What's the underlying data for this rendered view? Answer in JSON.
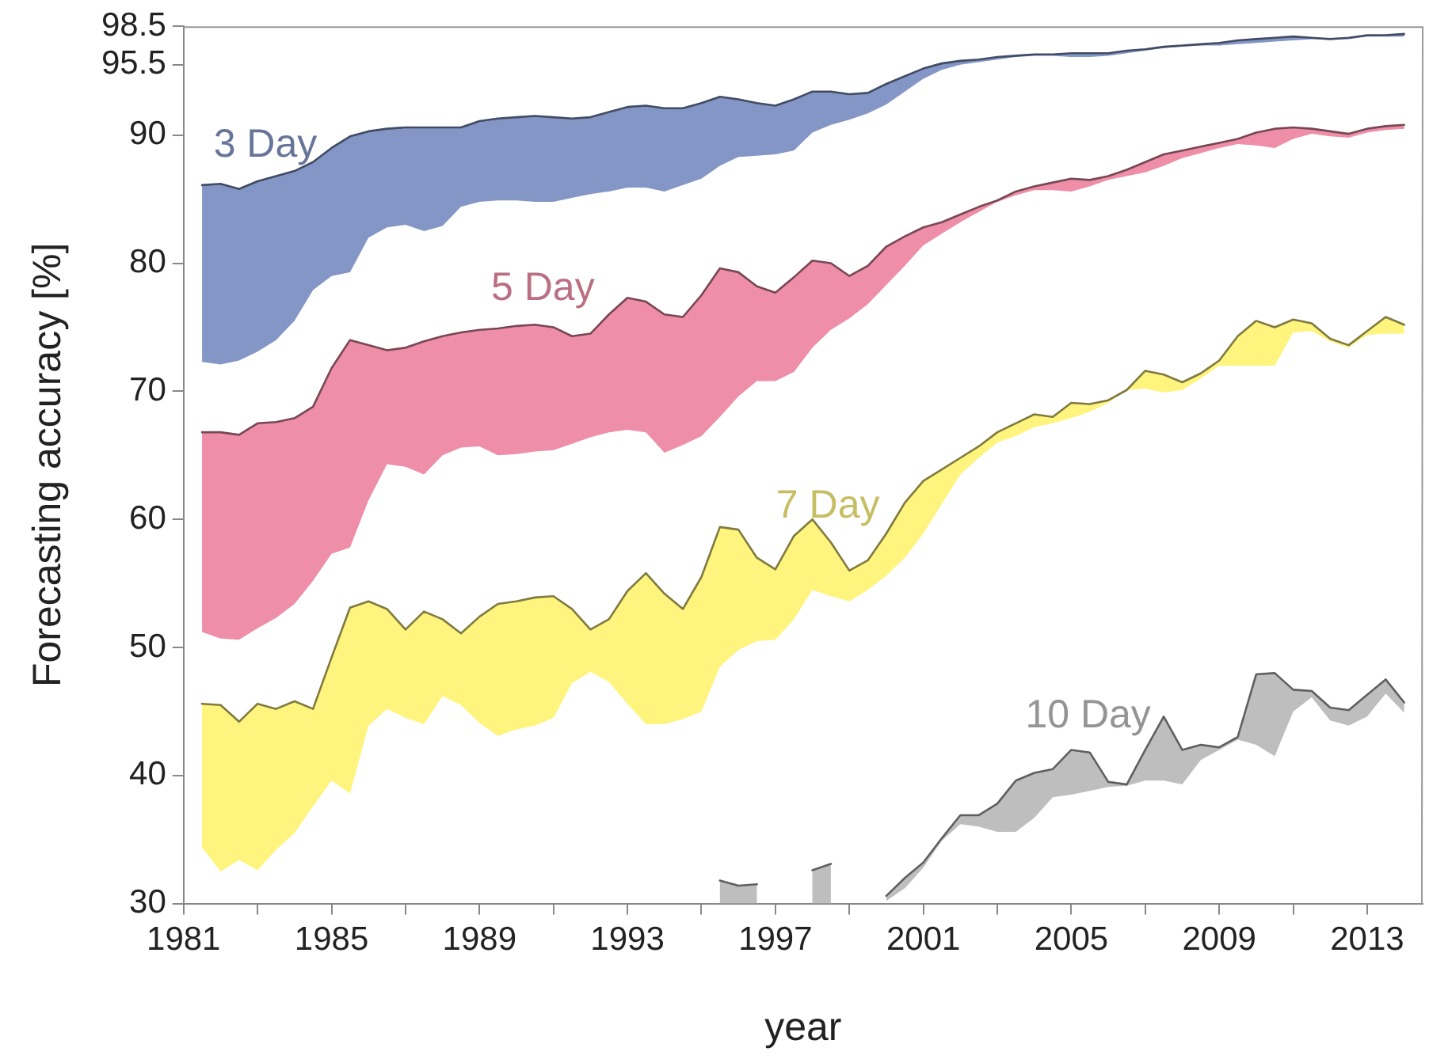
{
  "chart_data": {
    "type": "line",
    "xlabel": "year",
    "ylabel": "Forecasting accuracy [%]",
    "xlim": [
      1981,
      2014.5
    ],
    "xticks": [
      1981,
      {
        "value": 1983,
        "label": null
      },
      1985,
      {
        "value": 1987,
        "label": null
      },
      1989,
      {
        "value": 1991,
        "label": null
      },
      1993,
      {
        "value": 1995,
        "label": null
      },
      1997,
      {
        "value": 1999,
        "label": null
      },
      2001,
      {
        "value": 2003,
        "label": null
      },
      2005,
      {
        "value": 2007,
        "label": null
      },
      2009,
      {
        "value": 2011,
        "label": null
      },
      2013
    ],
    "ylim": [
      30,
      98.5
    ],
    "yticks": [
      30,
      40,
      50,
      60,
      70,
      80,
      90,
      95.5,
      98.5
    ],
    "x": [
      1981.5,
      1982,
      1982.5,
      1983,
      1983.5,
      1984,
      1984.5,
      1985,
      1985.5,
      1986,
      1986.5,
      1987,
      1987.5,
      1988,
      1988.5,
      1989,
      1989.5,
      1990,
      1990.5,
      1991,
      1991.5,
      1992,
      1992.5,
      1993,
      1993.5,
      1994,
      1994.5,
      1995,
      1995.5,
      1996,
      1996.5,
      1997,
      1997.5,
      1998,
      1998.5,
      1999,
      1999.5,
      2000,
      2000.5,
      2001,
      2001.5,
      2002,
      2002.5,
      2003,
      2003.5,
      2004,
      2004.5,
      2005,
      2005.5,
      2006,
      2006.5,
      2007,
      2007.5,
      2008,
      2008.5,
      2009,
      2009.5,
      2010,
      2010.5,
      2011,
      2011.5,
      2012,
      2012.5,
      2013,
      2013.5,
      2014
    ],
    "series": [
      {
        "name": "3 Day",
        "color": "#424b63",
        "values": [
          86.1,
          86.2,
          85.8,
          86.4,
          86.8,
          87.2,
          87.9,
          89.0,
          89.9,
          90.3,
          90.5,
          90.6,
          90.6,
          90.6,
          90.6,
          91.1,
          91.3,
          91.4,
          91.5,
          91.4,
          91.3,
          91.4,
          91.8,
          92.2,
          92.3,
          92.1,
          92.1,
          92.5,
          93.0,
          92.8,
          92.5,
          92.3,
          92.8,
          93.4,
          93.4,
          93.2,
          93.3,
          94.0,
          94.6,
          95.2,
          95.6,
          95.8,
          95.9,
          96.1,
          96.2,
          96.3,
          96.3,
          96.4,
          96.4,
          96.4,
          96.6,
          96.7,
          96.9,
          97.0,
          97.1,
          97.2,
          97.4,
          97.5,
          97.6,
          97.7,
          97.6,
          97.5,
          97.6,
          97.8,
          97.8,
          97.9
        ],
        "upper": [
          86.1,
          86.2,
          85.8,
          86.4,
          86.8,
          87.2,
          87.9,
          89.0,
          89.9,
          90.3,
          90.5,
          90.6,
          90.6,
          90.6,
          90.6,
          91.1,
          91.3,
          91.4,
          91.5,
          91.4,
          91.3,
          91.4,
          91.8,
          92.2,
          92.3,
          92.1,
          92.1,
          92.5,
          93.0,
          92.8,
          92.5,
          92.3,
          92.8,
          93.4,
          93.4,
          93.2,
          93.3,
          94.0,
          94.6,
          95.2,
          95.6,
          95.8,
          95.9,
          96.1,
          96.2,
          96.3,
          96.3,
          96.4,
          96.4,
          96.4,
          96.6,
          96.7,
          96.9,
          97.0,
          97.1,
          97.2,
          97.4,
          97.5,
          97.6,
          97.7,
          97.6,
          97.5,
          97.6,
          97.8,
          97.8,
          97.9
        ],
        "lower": [
          72.3,
          72.1,
          72.4,
          73.1,
          74.0,
          75.5,
          77.9,
          79.0,
          79.3,
          82.0,
          82.8,
          83.0,
          82.5,
          82.9,
          84.4,
          84.8,
          84.9,
          84.9,
          84.8,
          84.8,
          85.1,
          85.4,
          85.6,
          85.9,
          85.9,
          85.6,
          86.1,
          86.6,
          87.6,
          88.3,
          88.4,
          88.5,
          88.8,
          90.2,
          90.8,
          91.2,
          91.7,
          92.4,
          93.4,
          94.4,
          95.1,
          95.5,
          95.7,
          95.9,
          96.1,
          96.2,
          96.2,
          96.1,
          96.1,
          96.2,
          96.4,
          96.6,
          96.8,
          96.9,
          97.0,
          97.0,
          97.1,
          97.2,
          97.3,
          97.4,
          97.5,
          97.5,
          97.5,
          97.7,
          97.7,
          97.7
        ]
      },
      {
        "name": "5 Day",
        "color": "#774754",
        "values": [
          66.8,
          66.8,
          66.6,
          67.5,
          67.6,
          67.9,
          68.8,
          71.8,
          74.0,
          73.6,
          73.2,
          73.4,
          73.9,
          74.3,
          74.6,
          74.8,
          74.9,
          75.1,
          75.2,
          75.0,
          74.3,
          74.5,
          76.0,
          77.3,
          77.0,
          76.0,
          75.8,
          77.5,
          79.6,
          79.3,
          78.2,
          77.7,
          78.9,
          80.2,
          80.0,
          79.0,
          79.8,
          81.3,
          82.1,
          82.8,
          83.2,
          83.8,
          84.4,
          84.9,
          85.6,
          86.0,
          86.3,
          86.6,
          86.5,
          86.8,
          87.3,
          87.9,
          88.5,
          88.8,
          89.1,
          89.4,
          89.7,
          90.2,
          90.5,
          90.6,
          90.5,
          90.3,
          90.1,
          90.5,
          90.7,
          90.8
        ],
        "upper": [
          66.8,
          66.8,
          66.6,
          67.5,
          67.6,
          67.9,
          68.8,
          71.8,
          74.0,
          73.6,
          73.2,
          73.4,
          73.9,
          74.3,
          74.6,
          74.8,
          74.9,
          75.1,
          75.2,
          75.0,
          74.3,
          74.5,
          76.0,
          77.3,
          77.0,
          76.0,
          75.8,
          77.5,
          79.6,
          79.3,
          78.2,
          77.7,
          78.9,
          80.2,
          80.0,
          79.0,
          79.8,
          81.3,
          82.1,
          82.8,
          83.2,
          83.8,
          84.4,
          84.9,
          85.6,
          86.0,
          86.3,
          86.6,
          86.5,
          86.8,
          87.3,
          87.9,
          88.5,
          88.8,
          89.1,
          89.4,
          89.7,
          90.2,
          90.5,
          90.6,
          90.5,
          90.3,
          90.1,
          90.5,
          90.7,
          90.8
        ],
        "lower": [
          51.2,
          50.7,
          50.6,
          51.5,
          52.3,
          53.4,
          55.2,
          57.3,
          57.8,
          61.5,
          64.3,
          64.1,
          63.5,
          65.0,
          65.6,
          65.7,
          65.0,
          65.1,
          65.3,
          65.4,
          65.9,
          66.4,
          66.8,
          67.0,
          66.8,
          65.2,
          65.8,
          66.5,
          68.0,
          69.6,
          70.8,
          70.8,
          71.5,
          73.4,
          74.8,
          75.7,
          76.8,
          78.3,
          79.8,
          81.4,
          82.3,
          83.2,
          84.0,
          84.8,
          85.3,
          85.7,
          85.7,
          85.6,
          86.0,
          86.5,
          86.8,
          87.1,
          87.6,
          88.2,
          88.6,
          89.0,
          89.3,
          89.2,
          89.0,
          89.7,
          90.1,
          89.9,
          89.8,
          90.2,
          90.4,
          90.5
        ]
      },
      {
        "name": "7 Day",
        "color": "#7f7a3f",
        "values": [
          45.6,
          45.5,
          44.2,
          45.6,
          45.2,
          45.8,
          45.2,
          49.2,
          53.1,
          53.6,
          53.0,
          51.4,
          52.8,
          52.2,
          51.1,
          52.4,
          53.4,
          53.6,
          53.9,
          54.0,
          53.0,
          51.4,
          52.2,
          54.4,
          55.8,
          54.2,
          53.0,
          55.5,
          59.4,
          59.2,
          57.0,
          56.1,
          58.7,
          60.0,
          58.2,
          56.0,
          56.8,
          58.9,
          61.3,
          63.0,
          63.9,
          64.8,
          65.7,
          66.8,
          67.5,
          68.2,
          68.0,
          69.1,
          69.0,
          69.3,
          70.1,
          71.6,
          71.3,
          70.7,
          71.4,
          72.4,
          74.3,
          75.5,
          75.0,
          75.6,
          75.3,
          74.1,
          73.6,
          74.7,
          75.8,
          75.2
        ],
        "upper": [
          45.6,
          45.5,
          44.2,
          45.6,
          45.2,
          45.8,
          45.2,
          49.2,
          53.1,
          53.6,
          53.0,
          51.4,
          52.8,
          52.2,
          51.1,
          52.4,
          53.4,
          53.6,
          53.9,
          54.0,
          53.0,
          51.4,
          52.2,
          54.4,
          55.8,
          54.2,
          53.0,
          55.5,
          59.4,
          59.2,
          57.0,
          56.1,
          58.7,
          60.0,
          58.2,
          56.0,
          56.8,
          58.9,
          61.3,
          63.0,
          63.9,
          64.8,
          65.7,
          66.8,
          67.5,
          68.2,
          68.0,
          69.1,
          69.0,
          69.3,
          70.1,
          71.6,
          71.3,
          70.7,
          71.4,
          72.4,
          74.3,
          75.5,
          75.0,
          75.6,
          75.3,
          74.1,
          73.6,
          74.7,
          75.8,
          75.2
        ],
        "lower": [
          34.4,
          32.5,
          33.4,
          32.6,
          34.2,
          35.5,
          37.6,
          39.6,
          38.6,
          43.9,
          45.2,
          44.5,
          44.0,
          46.2,
          45.5,
          44.1,
          43.1,
          43.6,
          43.9,
          44.5,
          47.2,
          48.1,
          47.3,
          45.6,
          44.0,
          44.0,
          44.4,
          45.0,
          48.5,
          49.8,
          50.5,
          50.6,
          52.2,
          54.5,
          54.0,
          53.6,
          54.5,
          55.6,
          57.0,
          58.9,
          61.2,
          63.5,
          64.8,
          66.0,
          66.5,
          67.2,
          67.5,
          67.9,
          68.4,
          69.1,
          70.1,
          70.2,
          69.9,
          70.1,
          71.0,
          72.0,
          72.0,
          72.0,
          72.0,
          74.6,
          74.7,
          73.9,
          73.4,
          74.4,
          74.5,
          74.5
        ]
      },
      {
        "name": "10 Day",
        "color": "#5f5f5f",
        "x": [
          1995.5,
          1996,
          1996.5,
          1997,
          1997.5,
          1998,
          1998.5,
          1999,
          1999.5,
          2000,
          2000.5,
          2001,
          2001.5,
          2002,
          2002.5,
          2003,
          2003.5,
          2004,
          2004.5,
          2005,
          2005.5,
          2006,
          2006.5,
          2007,
          2007.5,
          2008,
          2008.5,
          2009,
          2009.5,
          2010,
          2010.5,
          2011,
          2011.5,
          2012,
          2012.5,
          2013,
          2013.5,
          2014
        ],
        "values": [
          31.8,
          31.4,
          31.5,
          null,
          null,
          32.6,
          33.1,
          null,
          null,
          30.6,
          32.0,
          33.2,
          35.1,
          36.9,
          36.9,
          37.8,
          39.6,
          40.2,
          40.5,
          42.0,
          41.8,
          39.5,
          39.3,
          42.0,
          44.6,
          42.0,
          42.4,
          42.2,
          43.0,
          47.9,
          48.0,
          46.7,
          46.6,
          45.3,
          45.1,
          46.3,
          47.5,
          45.7
        ],
        "upper": [
          31.8,
          31.4,
          31.5,
          null,
          null,
          32.6,
          33.1,
          null,
          null,
          30.6,
          32.0,
          33.2,
          35.1,
          36.9,
          36.9,
          37.8,
          39.6,
          40.2,
          40.5,
          42.0,
          41.8,
          39.5,
          39.3,
          42.0,
          44.6,
          42.0,
          42.4,
          42.2,
          43.0,
          47.9,
          48.0,
          46.7,
          46.6,
          45.3,
          45.1,
          46.3,
          47.5,
          45.7
        ],
        "lower": [
          30,
          30,
          30,
          null,
          null,
          30,
          30,
          null,
          null,
          30.2,
          31.2,
          32.8,
          34.9,
          36.2,
          36.0,
          35.6,
          35.6,
          36.7,
          38.3,
          38.5,
          38.8,
          39.1,
          39.2,
          39.6,
          39.6,
          39.3,
          41.2,
          42.0,
          42.8,
          42.4,
          41.5,
          45.0,
          46.1,
          44.3,
          43.9,
          44.6,
          46.4,
          44.9
        ]
      }
    ]
  }
}
